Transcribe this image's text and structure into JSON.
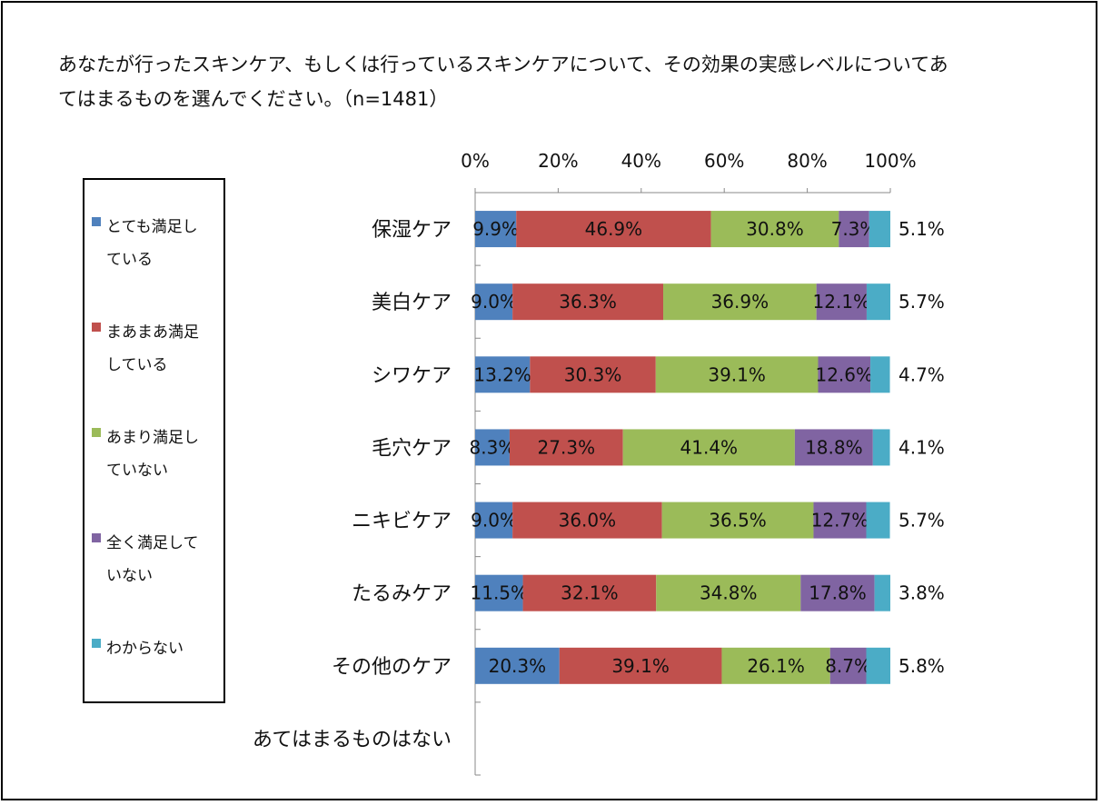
{
  "title": "あなたが行ったスキンケア、もしくは行っているスキンケアについて、その効果の実感レベルについてあてはまるものを選んでください。（n=1481）",
  "chart_data": {
    "type": "bar",
    "orientation": "horizontal",
    "stacked": "100%",
    "title": "あなたが行ったスキンケア、もしくは行っているスキンケアについて、その効果の実感レベルについてあてはまるものを選んでください。（n=1481）",
    "categories": [
      "保湿ケア",
      "美白ケア",
      "シワケア",
      "毛穴ケア",
      "ニキビケア",
      "たるみケア",
      "その他のケア",
      "あてはまるものはない"
    ],
    "x_ticks": [
      "0%",
      "20%",
      "40%",
      "60%",
      "80%",
      "100%"
    ],
    "xlim": [
      0,
      100
    ],
    "legend_position": "left",
    "series": [
      {
        "name": "とても満足している",
        "color": "#4F81BD",
        "values": [
          9.9,
          9.0,
          13.2,
          8.3,
          9.0,
          11.5,
          20.3,
          null
        ],
        "labels": [
          "9.9%",
          "9.0%",
          "13.2%",
          "8.3%",
          "9.0%",
          "11.5%",
          "20.3%",
          ""
        ]
      },
      {
        "name": "まあまあ満足している",
        "color": "#C0504D",
        "values": [
          46.9,
          36.3,
          30.3,
          27.3,
          36.0,
          32.1,
          39.1,
          null
        ],
        "labels": [
          "46.9%",
          "36.3%",
          "30.3%",
          "27.3%",
          "36.0%",
          "32.1%",
          "39.1%",
          ""
        ]
      },
      {
        "name": "あまり満足していない",
        "color": "#9BBB59",
        "values": [
          30.8,
          36.9,
          39.1,
          41.4,
          36.5,
          34.8,
          26.1,
          null
        ],
        "labels": [
          "30.8%",
          "36.9%",
          "39.1%",
          "41.4%",
          "36.5%",
          "34.8%",
          "26.1%",
          ""
        ]
      },
      {
        "name": "全く満足していない",
        "color": "#8064A2",
        "values": [
          7.3,
          12.1,
          12.6,
          18.8,
          12.7,
          17.8,
          8.7,
          null
        ],
        "labels": [
          "7.3%",
          "12.1%",
          "12.6%",
          "18.8%",
          "12.7%",
          "17.8%",
          "8.7%",
          ""
        ]
      },
      {
        "name": "わからない",
        "color": "#4BACC6",
        "values": [
          5.1,
          5.7,
          4.7,
          4.1,
          5.7,
          3.8,
          5.8,
          null
        ],
        "labels": [
          "5.1%",
          "5.7%",
          "4.7%",
          "4.1%",
          "5.7%",
          "3.8%",
          "5.8%",
          ""
        ]
      }
    ]
  },
  "legend": {
    "items": [
      {
        "line1": "とても満足し",
        "line2": "ている"
      },
      {
        "line1": "まあまあ満足",
        "line2": "している"
      },
      {
        "line1": "あまり満足し",
        "line2": "ていない"
      },
      {
        "line1": "全く満足して",
        "line2": "いない"
      },
      {
        "line1": "わからない",
        "line2": ""
      }
    ]
  }
}
